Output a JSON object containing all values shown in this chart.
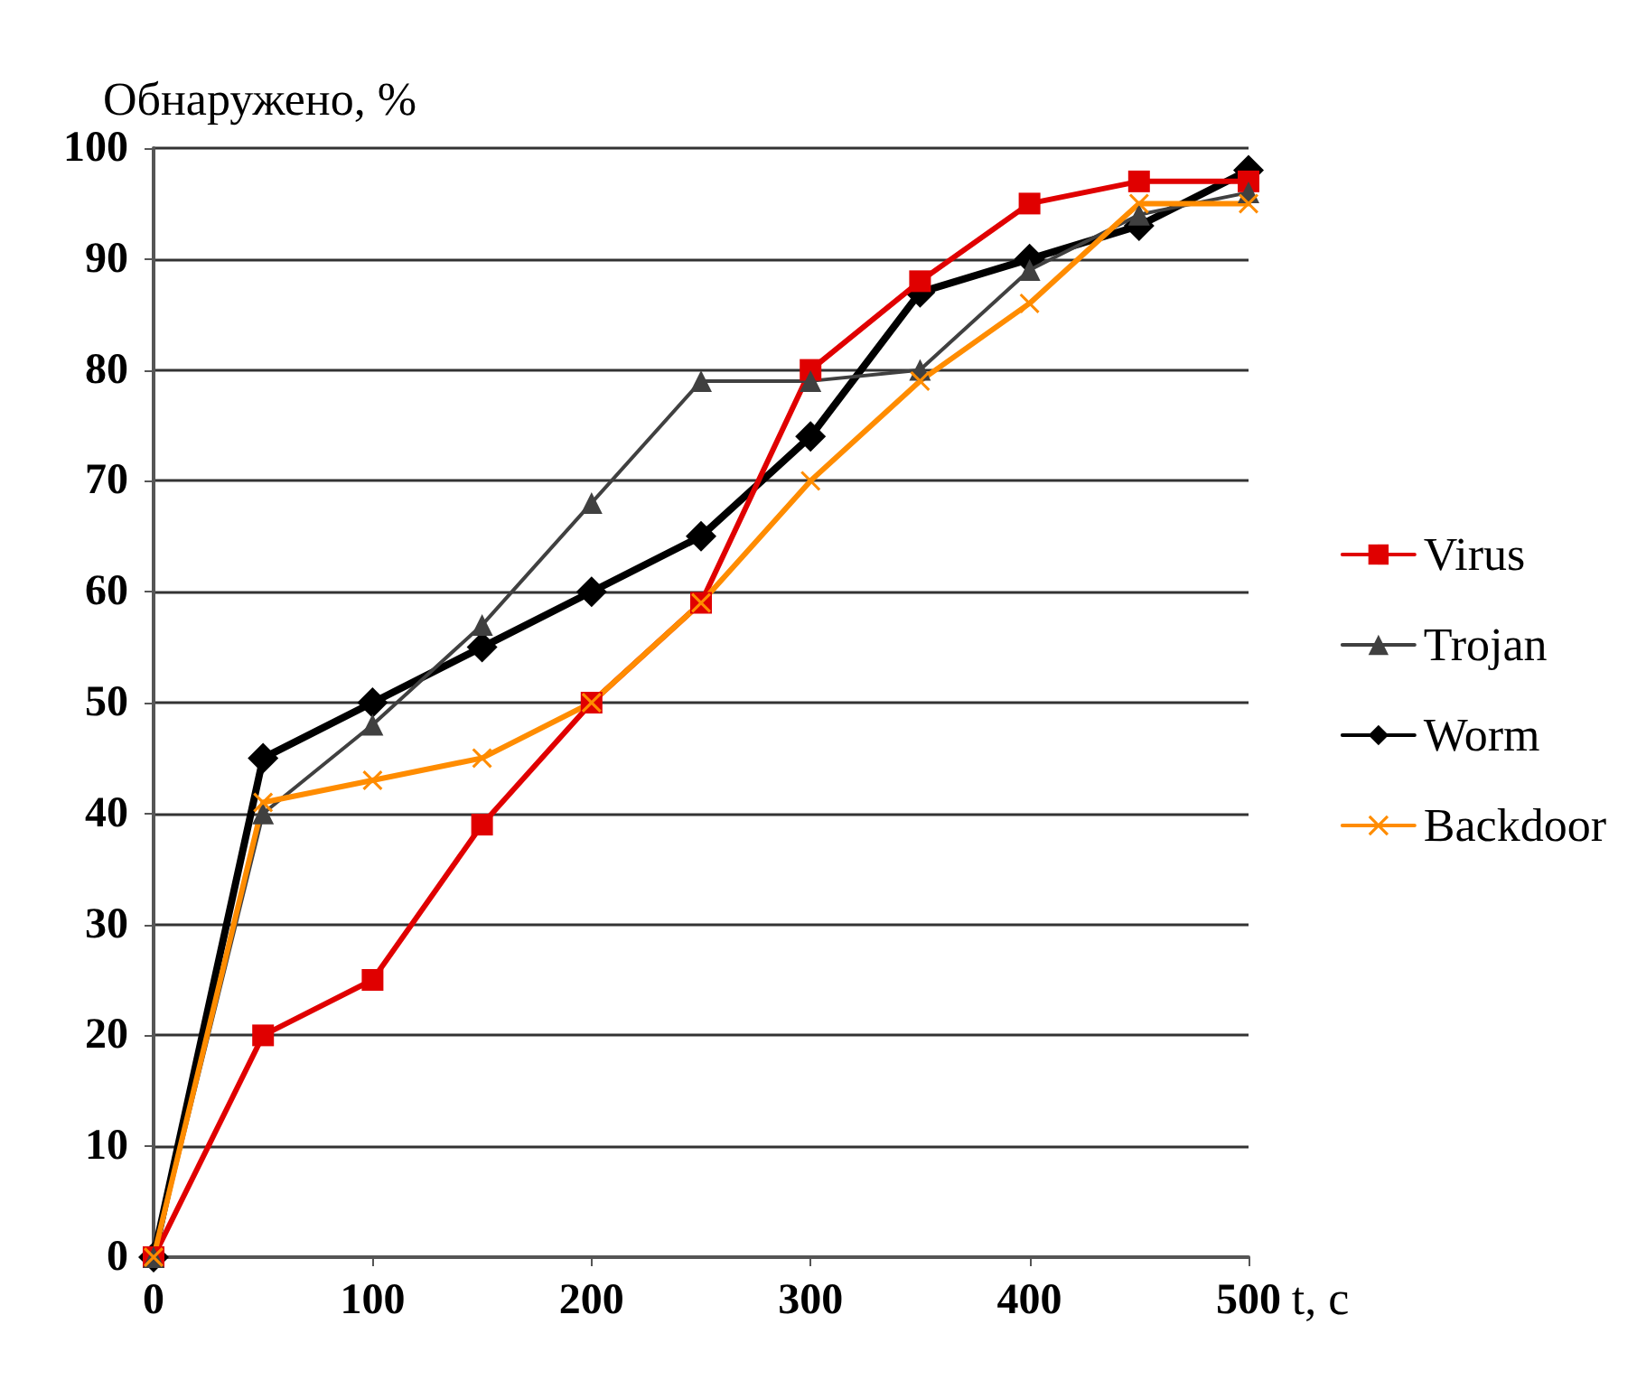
{
  "chart_data": {
    "type": "line",
    "ylabel": "Обнаружено, %",
    "xlabel": "t, c",
    "x": [
      0,
      50,
      100,
      150,
      200,
      250,
      300,
      350,
      400,
      450,
      500
    ],
    "xlim": [
      0,
      500
    ],
    "xticks": [
      0,
      100,
      200,
      300,
      400,
      500
    ],
    "ylim": [
      0,
      100
    ],
    "yticks": [
      0,
      10,
      20,
      30,
      40,
      50,
      60,
      70,
      80,
      90,
      100
    ],
    "grid": "y",
    "legend": "right",
    "series": [
      {
        "name": "Virus",
        "color": "#e00000",
        "marker": "square",
        "values": [
          0,
          20,
          25,
          39,
          50,
          59,
          80,
          88,
          95,
          97,
          97
        ]
      },
      {
        "name": "Trojan",
        "color": "#404040",
        "marker": "triangle",
        "values": [
          0,
          40,
          48,
          57,
          68,
          79,
          79,
          80,
          89,
          94,
          96
        ]
      },
      {
        "name": "Worm",
        "color": "#000000",
        "marker": "diamond",
        "values": [
          0,
          45,
          50,
          55,
          60,
          65,
          74,
          87,
          90,
          93,
          98
        ]
      },
      {
        "name": "Backdoor",
        "color": "#ff8c00",
        "marker": "cross",
        "values": [
          0,
          41,
          43,
          45,
          50,
          59,
          70,
          79,
          86,
          95,
          95
        ]
      }
    ]
  }
}
